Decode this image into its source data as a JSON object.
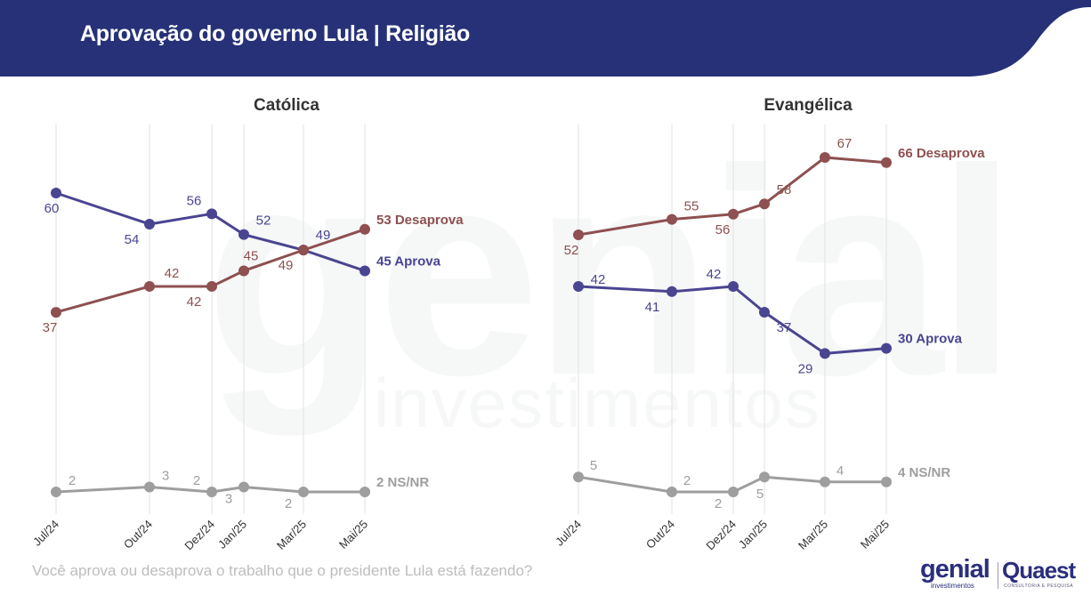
{
  "header": {
    "title": "Aprovação do governo Lula | Religião",
    "background_color": "#263177"
  },
  "watermark": {
    "big_text": "genial",
    "sub_text": "investimentos"
  },
  "question": "Você aprova ou desaprova o trabalho que o presidente Lula está fazendo?",
  "logos": {
    "genial": "genial",
    "genial_sub": "investimentos",
    "quaest": "Quaest",
    "quaest_sub": "CONSULTORIA E PESQUISA"
  },
  "colors": {
    "aprova": "#4a4590",
    "desaprova": "#8e5050",
    "nsnr": "#9e9e9e",
    "grid": "#e6e6e6"
  },
  "chart_data": [
    {
      "type": "line",
      "title": "Católica",
      "categories": [
        "Jul/24",
        "Out/24",
        "Dez/24",
        "Jan/25",
        "Mar/25",
        "Mai/25"
      ],
      "xlabel": "",
      "ylabel": "",
      "grid": "vertical",
      "series": [
        {
          "name": "Aprova",
          "end_label": "45 Aprova",
          "values": [
            60,
            54,
            56,
            52,
            49,
            45
          ]
        },
        {
          "name": "Desaprova",
          "end_label": "53 Desaprova",
          "values": [
            37,
            42,
            42,
            45,
            49,
            53
          ]
        },
        {
          "name": "NS/NR",
          "end_label": "2 NS/NR",
          "values": [
            2,
            3,
            2,
            3,
            2,
            2
          ]
        }
      ]
    },
    {
      "type": "line",
      "title": "Evangélica",
      "categories": [
        "Jul/24",
        "Out/24",
        "Dez/24",
        "Jan/25",
        "Mar/25",
        "Mai/25"
      ],
      "xlabel": "",
      "ylabel": "",
      "grid": "vertical",
      "series": [
        {
          "name": "Aprova",
          "end_label": "30 Aprova",
          "values": [
            42,
            41,
            42,
            37,
            29,
            30
          ]
        },
        {
          "name": "Desaprova",
          "end_label": "66 Desaprova",
          "values": [
            52,
            55,
            56,
            58,
            67,
            66
          ]
        },
        {
          "name": "NS/NR",
          "end_label": "4 NS/NR",
          "values": [
            5,
            2,
            2,
            5,
            4,
            4
          ]
        }
      ]
    }
  ]
}
